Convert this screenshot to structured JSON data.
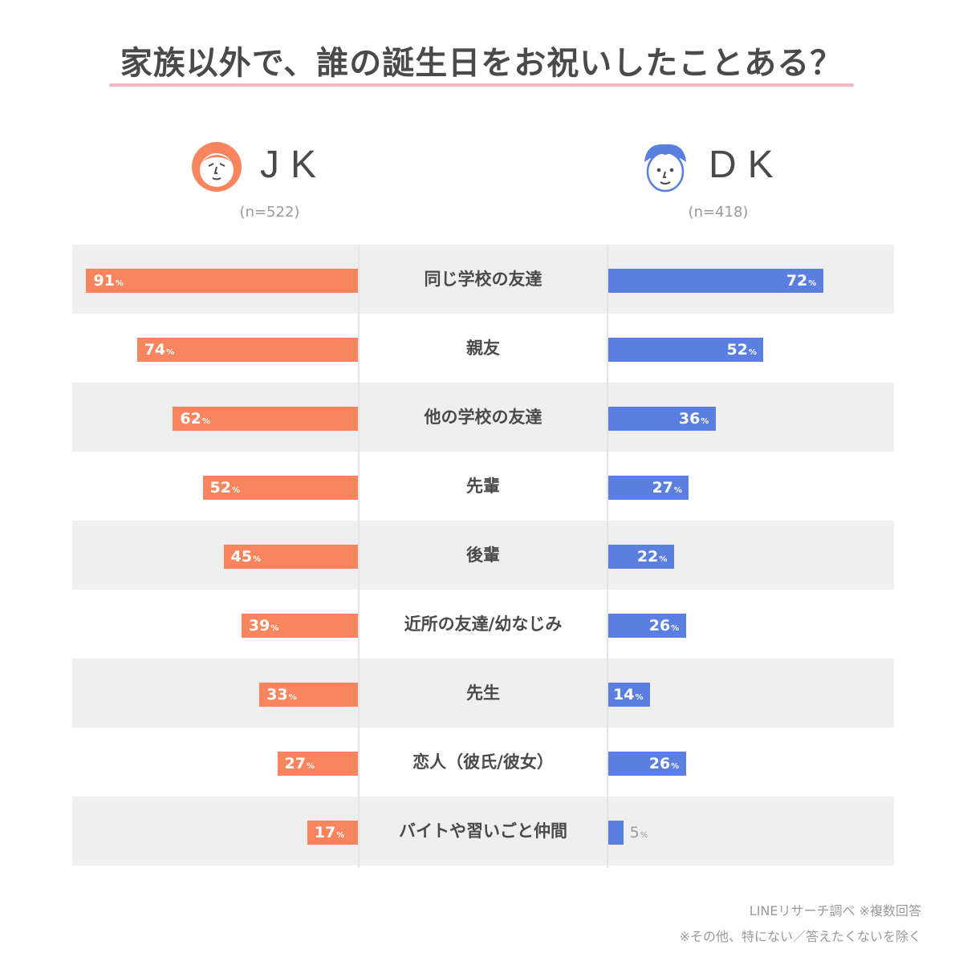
{
  "title": "家族以外で、誰の誕生日をお祝いしたことある？",
  "groups": {
    "jk": {
      "label": "JK",
      "n": "(n=522)",
      "color": "#f9855e"
    },
    "dk": {
      "label": "DK",
      "n": "(n=418)",
      "color": "#5a7fe0"
    }
  },
  "percent_unit": "%",
  "chart_data": {
    "type": "bar",
    "orientation": "horizontal-butterfly",
    "title": "家族以外で、誰の誕生日をお祝いしたことある？",
    "categories": [
      "同じ学校の友達",
      "親友",
      "他の学校の友達",
      "先輩",
      "後輩",
      "近所の友達/幼なじみ",
      "先生",
      "恋人（彼氏/彼女）",
      "バイトや習いごと仲間"
    ],
    "series": [
      {
        "name": "JK",
        "values": [
          91,
          74,
          62,
          52,
          45,
          39,
          33,
          27,
          17
        ]
      },
      {
        "name": "DK",
        "values": [
          72,
          52,
          36,
          27,
          22,
          26,
          14,
          26,
          5
        ]
      }
    ],
    "unit": "%",
    "xlim": [
      0,
      100
    ],
    "legend": "top"
  },
  "notes": [
    "LINEリサーチ調べ ※複数回答",
    "※その他、特にない／答えたくないを除く"
  ]
}
